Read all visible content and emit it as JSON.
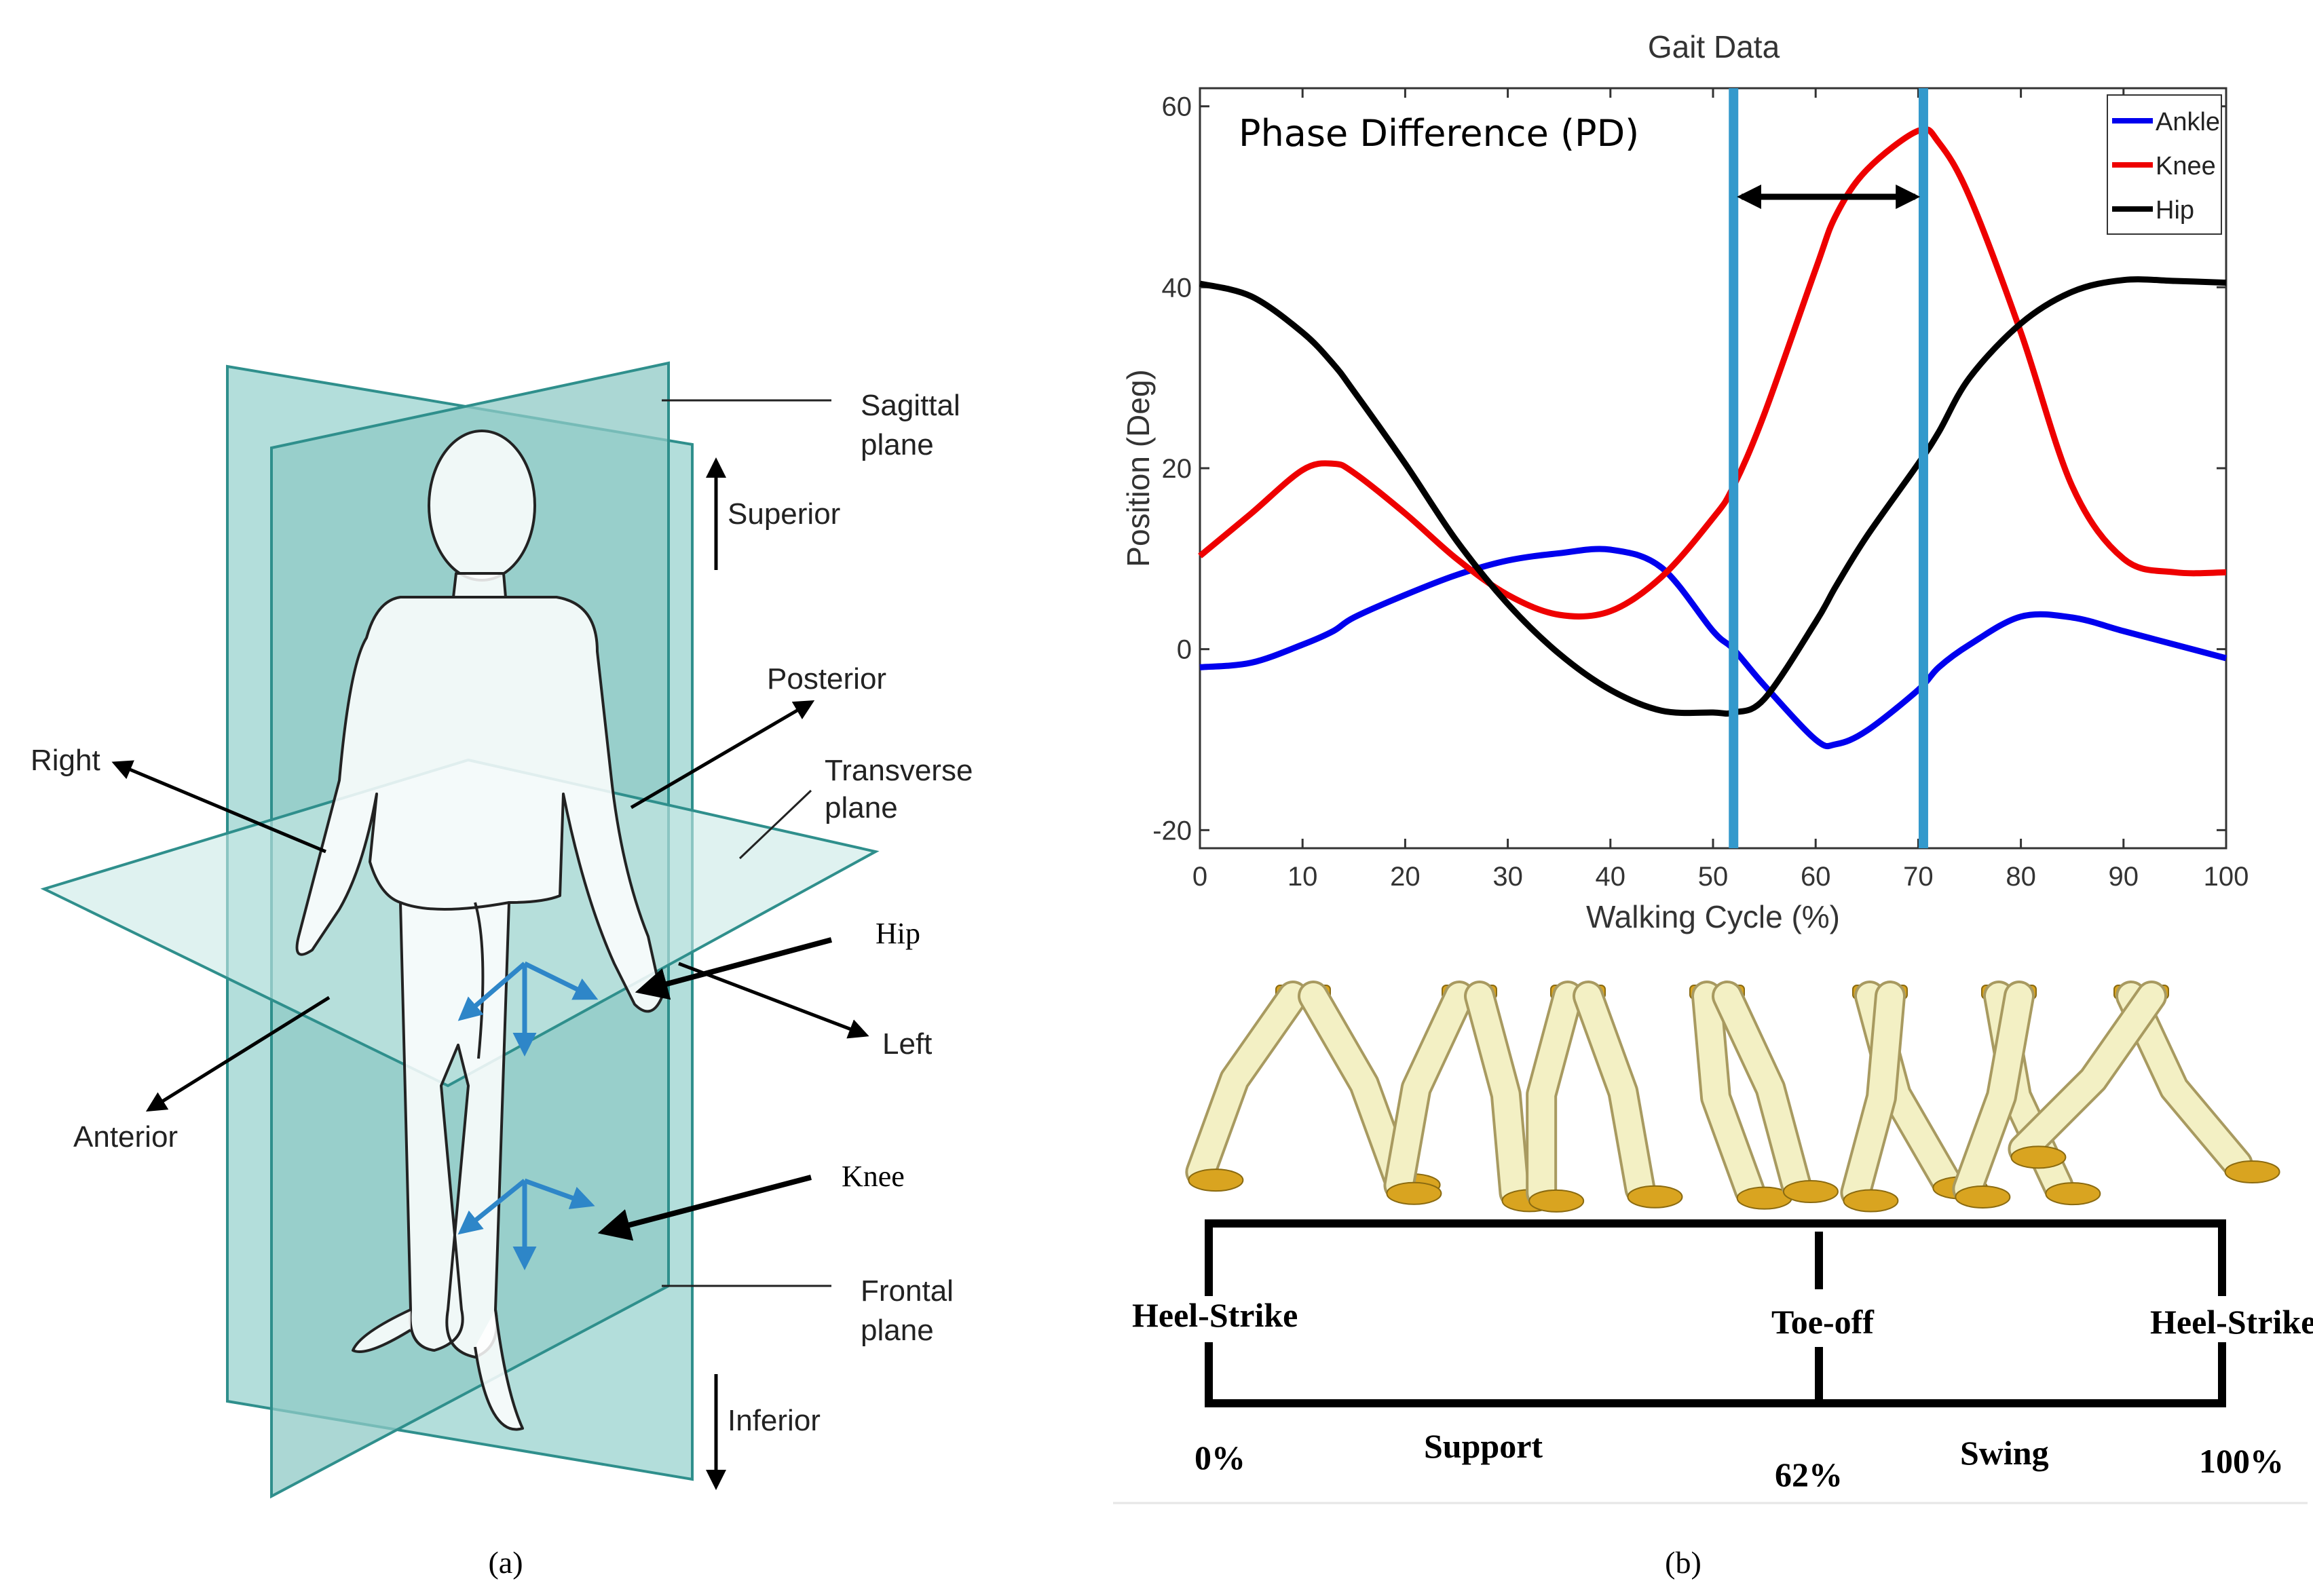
{
  "panel_a": {
    "caption": "(a)",
    "labels": {
      "sagittal_plane_1": "Sagittal",
      "sagittal_plane_2": "plane",
      "superior": "Superior",
      "posterior": "Posterior",
      "right": "Right",
      "transverse_plane_1": "Transverse",
      "transverse_plane_2": "plane",
      "hip": "Hip",
      "left": "Left",
      "anterior": "Anterior",
      "knee": "Knee",
      "frontal_plane_1": "Frontal",
      "frontal_plane_2": "plane",
      "inferior": "Inferior"
    },
    "colors": {
      "plane": "#9fd3d0",
      "plane_edge": "#2f8f8c",
      "joint_arrows": "#2e86c8",
      "callout": "#000000"
    }
  },
  "panel_b": {
    "caption": "(b)",
    "phase_label": "Phase Difference (PD)",
    "timeline": {
      "heel_strike_start": "Heel-Strike",
      "toe_off": "Toe-off",
      "heel_strike_end": "Heel-Strike",
      "pct_0": "0%",
      "pct_62": "62%",
      "pct_100": "100%",
      "support": "Support",
      "swing": "Swing"
    }
  },
  "chart_data": {
    "type": "line",
    "title": "Gait Data",
    "xlabel": "Walking Cycle (%)",
    "ylabel": "Position (Deg)",
    "xlim": [
      0,
      100
    ],
    "ylim": [
      -22,
      62
    ],
    "xticks": [
      0,
      10,
      20,
      30,
      40,
      50,
      60,
      70,
      80,
      90,
      100
    ],
    "yticks": [
      -20,
      0,
      20,
      40,
      60
    ],
    "legend_position": "top-right",
    "x": [
      0,
      5,
      10,
      13,
      15,
      20,
      25,
      30,
      35,
      40,
      45,
      50,
      52,
      55,
      60,
      62,
      65,
      70,
      72,
      75,
      80,
      85,
      90,
      95,
      100
    ],
    "series": [
      {
        "name": "Ankle",
        "color": "#0000ee",
        "values": [
          -2,
          -1.5,
          0.5,
          2,
          3.5,
          6,
          8.2,
          9.8,
          10.6,
          11,
          9,
          2,
          0,
          -4,
          -10,
          -10.5,
          -9,
          -4.5,
          -2,
          0.5,
          3.6,
          3.5,
          2,
          0.5,
          -1
        ]
      },
      {
        "name": "Knee",
        "color": "#ee0000",
        "values": [
          10.3,
          15,
          19.8,
          20.5,
          19.5,
          15,
          10,
          6,
          3.8,
          4.2,
          8,
          14.5,
          18,
          26,
          42,
          48,
          53,
          57.3,
          56,
          50,
          35,
          18,
          10,
          8.5,
          8.5
        ]
      },
      {
        "name": "Hip",
        "color": "#000000",
        "values": [
          40.4,
          39,
          35,
          31.5,
          28.5,
          20.5,
          12,
          5,
          -0.5,
          -4.5,
          -6.8,
          -7,
          -7,
          -5.5,
          3,
          7,
          12.5,
          20.5,
          24,
          30,
          36,
          39.5,
          40.8,
          40.7,
          40.5
        ]
      }
    ],
    "phase_lines": [
      52,
      70.5
    ]
  }
}
